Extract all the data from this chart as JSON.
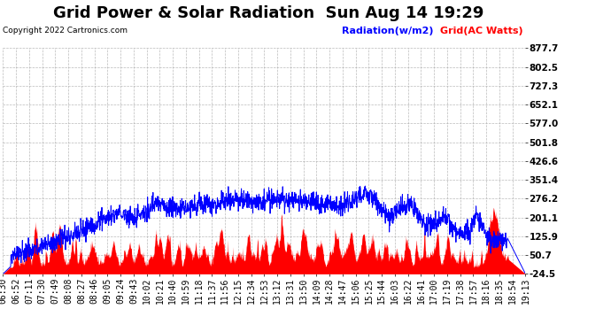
{
  "title": "Grid Power & Solar Radiation  Sun Aug 14 19:29",
  "copyright": "Copyright 2022 Cartronics.com",
  "legend_radiation": "Radiation(w/m2)",
  "legend_grid": "Grid(AC Watts)",
  "yticks": [
    877.7,
    802.5,
    727.3,
    652.1,
    577.0,
    501.8,
    426.6,
    351.4,
    276.2,
    201.1,
    125.9,
    50.7,
    -24.5
  ],
  "ylim": [
    -24.5,
    877.7
  ],
  "xlabels": [
    "06:30",
    "06:52",
    "07:11",
    "07:30",
    "07:49",
    "08:08",
    "08:27",
    "08:46",
    "09:05",
    "09:24",
    "09:43",
    "10:02",
    "10:21",
    "10:40",
    "10:59",
    "11:18",
    "11:37",
    "11:56",
    "12:15",
    "12:34",
    "12:53",
    "13:12",
    "13:31",
    "13:50",
    "14:09",
    "14:28",
    "14:47",
    "15:06",
    "15:25",
    "15:44",
    "16:03",
    "16:22",
    "16:41",
    "17:00",
    "17:19",
    "17:38",
    "17:57",
    "18:16",
    "18:35",
    "18:54",
    "19:13"
  ],
  "bg_color": "#ffffff",
  "grid_color": "#aaaaaa",
  "fill_color": "#ff0000",
  "line_color_radiation": "#0000ff",
  "line_color_grid": "#ff0000",
  "title_fontsize": 13,
  "label_fontsize": 7,
  "copyright_fontsize": 6.5,
  "legend_fontsize": 8
}
